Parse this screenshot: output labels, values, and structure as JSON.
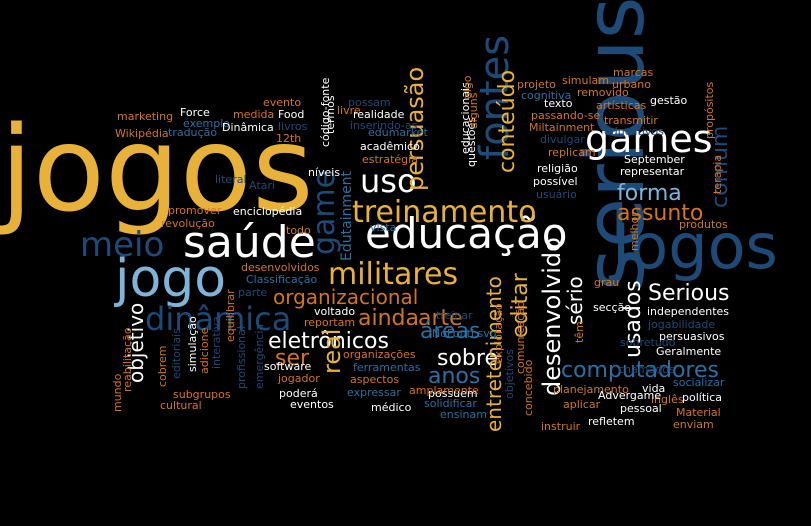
{
  "palette": {
    "background": "#000000",
    "gold": "#e7b13a",
    "white": "#ffffff",
    "orange": "#d1761e",
    "lightblue": "#7fb4d9",
    "blue": "#2c6fa1",
    "darkblue": "#1e4a78",
    "teal": "#6f9fb8"
  },
  "words": [
    {
      "text": "jogos"
    },
    {
      "text": "saúde"
    },
    {
      "text": "educação"
    },
    {
      "text": "jogo"
    },
    {
      "text": "Jogos"
    },
    {
      "text": "serious"
    },
    {
      "text": "treinamento"
    },
    {
      "text": "militares"
    },
    {
      "text": "games"
    },
    {
      "text": "uso"
    },
    {
      "text": "meio"
    },
    {
      "text": "dinâmica"
    },
    {
      "text": "persuasão"
    },
    {
      "text": "fontes"
    },
    {
      "text": "conteúdo"
    },
    {
      "text": "game"
    },
    {
      "text": "forma"
    },
    {
      "text": "assunto"
    },
    {
      "text": "comum"
    },
    {
      "text": "organizacional"
    },
    {
      "text": "arte"
    },
    {
      "text": "eletrônicos"
    },
    {
      "text": "ainda"
    },
    {
      "text": "áreas"
    },
    {
      "text": "ser"
    },
    {
      "text": "real"
    },
    {
      "text": "sobre"
    },
    {
      "text": "anos"
    },
    {
      "text": "entretenimento"
    },
    {
      "text": "editar"
    },
    {
      "text": "desenvolvido"
    },
    {
      "text": "sério"
    },
    {
      "text": "usados"
    },
    {
      "text": "Serious"
    },
    {
      "text": "computadores"
    },
    {
      "text": "objetivo"
    },
    {
      "text": "Edutainment"
    },
    {
      "text": "marketing"
    },
    {
      "text": "Force"
    },
    {
      "text": "medida"
    },
    {
      "text": "Food"
    },
    {
      "text": "evento"
    },
    {
      "text": "exemplo"
    },
    {
      "text": "Wikipédia"
    },
    {
      "text": "tradução"
    },
    {
      "text": "Dinâmica"
    },
    {
      "text": "livros"
    },
    {
      "text": "12th"
    },
    {
      "text": "código-fonte"
    },
    {
      "text": "livre"
    },
    {
      "text": "termos"
    },
    {
      "text": "níveis"
    },
    {
      "text": "possam"
    },
    {
      "text": "realidade"
    },
    {
      "text": "inserindo-as"
    },
    {
      "text": "acadêmico"
    },
    {
      "text": "edumarket"
    },
    {
      "text": "estratégia"
    },
    {
      "text": "educacionais"
    },
    {
      "text": "algo"
    },
    {
      "text": "questões"
    },
    {
      "text": "alguns"
    },
    {
      "text": "projeto"
    },
    {
      "text": "simulam"
    },
    {
      "text": "cognitiva"
    },
    {
      "text": "marcas"
    },
    {
      "text": "urbano"
    },
    {
      "text": "removido"
    },
    {
      "text": "gestão"
    },
    {
      "text": "texto"
    },
    {
      "text": "artísticas"
    },
    {
      "text": "transmitir"
    },
    {
      "text": "passando-se"
    },
    {
      "text": "educativos"
    },
    {
      "text": "propósitos"
    },
    {
      "text": "Miltainment"
    },
    {
      "text": "divulgar"
    },
    {
      "text": "replicam"
    },
    {
      "text": "religião"
    },
    {
      "text": "possível"
    },
    {
      "text": "usuário"
    },
    {
      "text": "September"
    },
    {
      "text": "representar"
    },
    {
      "text": "terapia"
    },
    {
      "text": "literal"
    },
    {
      "text": "Atari"
    },
    {
      "text": "vista"
    },
    {
      "text": "promover"
    },
    {
      "text": "enciclopédia"
    },
    {
      "text": "revolução"
    },
    {
      "text": "todo"
    },
    {
      "text": "desenvolvidos"
    },
    {
      "text": "Classificação"
    },
    {
      "text": "parte"
    },
    {
      "text": "voltado"
    },
    {
      "text": "reportam"
    },
    {
      "text": "treinar"
    },
    {
      "text": "NoFonti.svg"
    },
    {
      "text": "comunicação"
    },
    {
      "text": "têm"
    },
    {
      "text": "grau"
    },
    {
      "text": "secção"
    },
    {
      "text": "independentes"
    },
    {
      "text": "jogabilidade"
    },
    {
      "text": "persuasivos"
    },
    {
      "text": "produtos"
    },
    {
      "text": "melhor"
    },
    {
      "text": "sobretudo"
    },
    {
      "text": "Geralmente"
    },
    {
      "text": "socializar"
    },
    {
      "text": "política"
    },
    {
      "text": "inglês"
    },
    {
      "text": "Material"
    },
    {
      "text": "enviam"
    },
    {
      "text": "refletem"
    },
    {
      "text": "pessoal"
    },
    {
      "text": "aplicar"
    },
    {
      "text": "instruir"
    },
    {
      "text": "planejamento"
    },
    {
      "text": "Advergame"
    },
    {
      "text": "vida"
    },
    {
      "text": "ensinam"
    },
    {
      "text": "médico"
    },
    {
      "text": "solidificar"
    },
    {
      "text": "possuem"
    },
    {
      "text": "amplamente"
    },
    {
      "text": "expressar"
    },
    {
      "text": "aspectos"
    },
    {
      "text": "ferramentas"
    },
    {
      "text": "organizações"
    },
    {
      "text": "eventos"
    },
    {
      "text": "poderá"
    },
    {
      "text": "jogador"
    },
    {
      "text": "software"
    },
    {
      "text": "emergência"
    },
    {
      "text": "profissional"
    },
    {
      "text": "equilibrar"
    },
    {
      "text": "interativa"
    },
    {
      "text": "adicione"
    },
    {
      "text": "simulação"
    },
    {
      "text": "editoriais"
    },
    {
      "text": "cobrem"
    },
    {
      "text": "subgrupos"
    },
    {
      "text": "cultural"
    },
    {
      "text": "reabilitação"
    },
    {
      "text": "mundo"
    },
    {
      "text": "objetivos"
    },
    {
      "text": "exploração"
    },
    {
      "text": "concebido"
    },
    {
      "text": "chamados"
    }
  ]
}
